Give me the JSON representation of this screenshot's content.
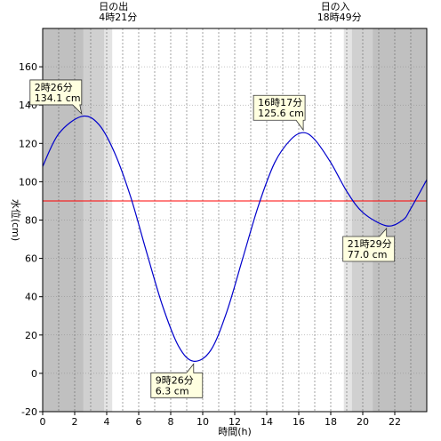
{
  "chart_data": {
    "type": "line",
    "xlabel": "時間(h)",
    "ylabel": "水位(cm)",
    "xlim": [
      0,
      24
    ],
    "ylim": [
      -20,
      180
    ],
    "x_ticks": [
      0,
      2,
      4,
      6,
      8,
      10,
      12,
      14,
      16,
      18,
      20,
      22
    ],
    "y_ticks": [
      -20,
      0,
      20,
      40,
      60,
      80,
      100,
      120,
      140,
      160
    ],
    "reference_line": {
      "y": 90,
      "color": "#ff0000"
    },
    "line_color": "#0000cc",
    "night_color": "#c0c0c0",
    "twilight_color_1": "#d0d0d0",
    "twilight_color_2": "#e4e4e4",
    "sunrise_hour": 4.35,
    "sunset_hour": 18.8167,
    "sunrise": {
      "label": "日の出",
      "time": "4時21分"
    },
    "sunset": {
      "label": "日の入",
      "time": "18時49分"
    },
    "series": [
      {
        "x": [
          0,
          1,
          2.433,
          3.5,
          4.5,
          5.5,
          6.5,
          7.5,
          8.5,
          9.433,
          10.5,
          11.5,
          12.5,
          13.5,
          14.5,
          15.5,
          16.283,
          17,
          18,
          19,
          20,
          21.483,
          22.5,
          23,
          24
        ],
        "y": [
          108,
          125,
          134.1,
          130,
          115,
          92,
          63,
          35,
          14,
          6.3,
          12,
          32,
          60,
          88,
          110,
          122,
          125.6,
          122,
          110,
          95,
          84,
          77.0,
          80,
          86,
          101
        ]
      }
    ],
    "extrema": [
      {
        "x": 2.433,
        "y": 134.1,
        "time": "2時26分",
        "value": "134.1 cm"
      },
      {
        "x": 9.433,
        "y": 6.3,
        "time": "9時26分",
        "value": "6.3 cm"
      },
      {
        "x": 16.283,
        "y": 125.6,
        "time": "16時17分",
        "value": "125.6 cm"
      },
      {
        "x": 21.483,
        "y": 77.0,
        "time": "21時29分",
        "value": "77.0 cm"
      }
    ]
  }
}
